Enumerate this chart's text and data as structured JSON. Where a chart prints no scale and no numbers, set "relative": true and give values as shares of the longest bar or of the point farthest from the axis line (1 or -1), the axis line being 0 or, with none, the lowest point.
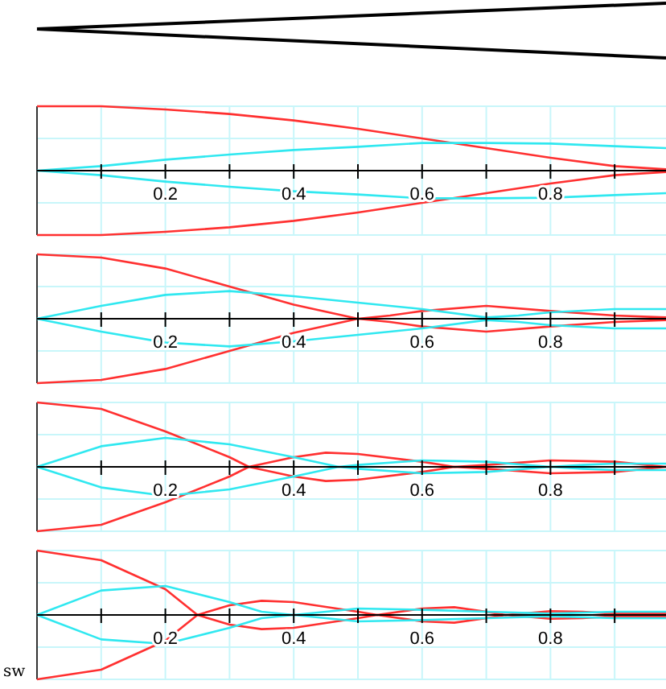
{
  "chart_data": [
    {
      "type": "line",
      "relative": true,
      "xlim": [
        0,
        0.98
      ],
      "xticks": [
        {
          "value": 0.1,
          "label": null
        },
        0.2,
        {
          "value": 0.3,
          "label": null
        },
        0.4,
        {
          "value": 0.5,
          "label": null
        },
        0.6,
        {
          "value": 0.7,
          "label": null
        },
        0.8,
        {
          "value": 0.9,
          "label": null
        }
      ],
      "grid": true,
      "series": [
        {
          "color": "#ff3030",
          "x": [
            0,
            0.1,
            0.2,
            0.3,
            0.4,
            0.5,
            0.6,
            0.7,
            0.8,
            0.9,
            0.98
          ],
          "values": [
            1,
            1,
            0.95,
            0.88,
            0.78,
            0.65,
            0.5,
            0.35,
            0.2,
            0.07,
            0.02
          ]
        },
        {
          "color": "#ff3030",
          "x": [
            0,
            0.1,
            0.2,
            0.3,
            0.4,
            0.5,
            0.6,
            0.7,
            0.8,
            0.9,
            0.98
          ],
          "values": [
            -1,
            -1,
            -0.95,
            -0.88,
            -0.78,
            -0.65,
            -0.5,
            -0.35,
            -0.2,
            -0.07,
            -0.02
          ]
        },
        {
          "color": "#30e8f0",
          "x": [
            0,
            0.1,
            0.2,
            0.3,
            0.4,
            0.5,
            0.6,
            0.7,
            0.8,
            0.9,
            0.98
          ],
          "values": [
            0,
            0.07,
            0.17,
            0.25,
            0.32,
            0.37,
            0.43,
            0.43,
            0.42,
            0.38,
            0.35
          ]
        },
        {
          "color": "#30e8f0",
          "x": [
            0,
            0.1,
            0.2,
            0.3,
            0.4,
            0.5,
            0.6,
            0.7,
            0.8,
            0.9,
            0.98
          ],
          "values": [
            0,
            -0.07,
            -0.17,
            -0.25,
            -0.32,
            -0.37,
            -0.43,
            -0.43,
            -0.42,
            -0.38,
            -0.35
          ]
        }
      ]
    },
    {
      "type": "line",
      "relative": true,
      "xlim": [
        0,
        0.98
      ],
      "xticks": [
        {
          "value": 0.1,
          "label": null
        },
        0.2,
        {
          "value": 0.3,
          "label": null
        },
        0.4,
        {
          "value": 0.5,
          "label": null
        },
        0.6,
        {
          "value": 0.7,
          "label": null
        },
        0.8,
        {
          "value": 0.9,
          "label": null
        }
      ],
      "grid": true,
      "series": [
        {
          "color": "#ff3030",
          "x": [
            0,
            0.1,
            0.2,
            0.3,
            0.4,
            0.5,
            0.55,
            0.6,
            0.7,
            0.8,
            0.9,
            0.98
          ],
          "values": [
            1,
            0.95,
            0.78,
            0.5,
            0.22,
            0,
            0.05,
            0.12,
            0.2,
            0.12,
            0.05,
            0.02
          ]
        },
        {
          "color": "#ff3030",
          "x": [
            0,
            0.1,
            0.2,
            0.3,
            0.4,
            0.5,
            0.55,
            0.6,
            0.7,
            0.8,
            0.9,
            0.98
          ],
          "values": [
            -1,
            -0.95,
            -0.78,
            -0.5,
            -0.22,
            0,
            -0.05,
            -0.12,
            -0.2,
            -0.12,
            -0.05,
            -0.02
          ]
        },
        {
          "color": "#30e8f0",
          "x": [
            0,
            0.1,
            0.2,
            0.3,
            0.4,
            0.5,
            0.6,
            0.7,
            0.75,
            0.8,
            0.9,
            0.98
          ],
          "values": [
            0,
            0.2,
            0.37,
            0.43,
            0.35,
            0.25,
            0.15,
            0.02,
            0.05,
            0.1,
            0.15,
            0.15
          ]
        },
        {
          "color": "#30e8f0",
          "x": [
            0,
            0.1,
            0.2,
            0.3,
            0.4,
            0.5,
            0.6,
            0.7,
            0.75,
            0.8,
            0.9,
            0.98
          ],
          "values": [
            0,
            -0.2,
            -0.37,
            -0.43,
            -0.35,
            -0.25,
            -0.15,
            -0.02,
            -0.05,
            -0.1,
            -0.15,
            -0.15
          ]
        }
      ]
    },
    {
      "type": "line",
      "relative": true,
      "xlim": [
        0,
        0.98
      ],
      "xticks": [
        {
          "value": 0.1,
          "label": null
        },
        0.2,
        {
          "value": 0.3,
          "label": null
        },
        0.4,
        {
          "value": 0.5,
          "label": null
        },
        0.6,
        {
          "value": 0.7,
          "label": null
        },
        0.8,
        {
          "value": 0.9,
          "label": null
        }
      ],
      "grid": true,
      "series": [
        {
          "color": "#ff3030",
          "x": [
            0,
            0.1,
            0.2,
            0.3,
            0.33,
            0.4,
            0.45,
            0.5,
            0.6,
            0.65,
            0.7,
            0.8,
            0.9,
            0.98
          ],
          "values": [
            1,
            0.9,
            0.55,
            0.15,
            0,
            0.15,
            0.22,
            0.2,
            0.08,
            0,
            0.03,
            0.1,
            0.08,
            0
          ]
        },
        {
          "color": "#ff3030",
          "x": [
            0,
            0.1,
            0.2,
            0.3,
            0.33,
            0.4,
            0.45,
            0.5,
            0.6,
            0.65,
            0.7,
            0.8,
            0.9,
            0.98
          ],
          "values": [
            -1,
            -0.9,
            -0.55,
            -0.15,
            0,
            -0.15,
            -0.22,
            -0.2,
            -0.08,
            0,
            -0.03,
            -0.1,
            -0.08,
            0
          ]
        },
        {
          "color": "#30e8f0",
          "x": [
            0,
            0.1,
            0.2,
            0.3,
            0.4,
            0.47,
            0.5,
            0.6,
            0.7,
            0.8,
            0.85,
            0.9,
            0.98
          ],
          "values": [
            0,
            0.32,
            0.45,
            0.35,
            0.15,
            0,
            0.03,
            0.1,
            0.08,
            0,
            0.03,
            0.05,
            0.05
          ]
        },
        {
          "color": "#30e8f0",
          "x": [
            0,
            0.1,
            0.2,
            0.3,
            0.4,
            0.47,
            0.5,
            0.6,
            0.7,
            0.8,
            0.85,
            0.9,
            0.98
          ],
          "values": [
            0,
            -0.32,
            -0.45,
            -0.35,
            -0.15,
            0,
            -0.03,
            -0.1,
            -0.08,
            0,
            -0.03,
            -0.05,
            -0.05
          ]
        }
      ]
    },
    {
      "type": "line",
      "relative": true,
      "xlim": [
        0,
        0.98
      ],
      "xticks": [
        {
          "value": 0.1,
          "label": null
        },
        0.2,
        {
          "value": 0.3,
          "label": null
        },
        0.4,
        {
          "value": 0.5,
          "label": null
        },
        0.6,
        {
          "value": 0.7,
          "label": null
        },
        0.8,
        {
          "value": 0.9,
          "label": null
        }
      ],
      "grid": true,
      "annotations": [
        "sw"
      ],
      "series": [
        {
          "color": "#ff3030",
          "x": [
            0,
            0.1,
            0.2,
            0.25,
            0.3,
            0.35,
            0.4,
            0.5,
            0.53,
            0.6,
            0.65,
            0.7,
            0.73,
            0.8,
            0.85,
            0.9,
            0.98
          ],
          "values": [
            1,
            0.85,
            0.4,
            0,
            0.15,
            0.22,
            0.2,
            0.05,
            0,
            0.1,
            0.12,
            0.05,
            0,
            0.06,
            0.05,
            0.02,
            0.02
          ]
        },
        {
          "color": "#ff3030",
          "x": [
            0,
            0.1,
            0.2,
            0.25,
            0.3,
            0.35,
            0.4,
            0.5,
            0.53,
            0.6,
            0.65,
            0.7,
            0.73,
            0.8,
            0.85,
            0.9,
            0.98
          ],
          "values": [
            -1,
            -0.85,
            -0.4,
            0,
            -0.15,
            -0.22,
            -0.2,
            -0.05,
            0,
            -0.1,
            -0.12,
            -0.05,
            0,
            -0.06,
            -0.05,
            -0.02,
            -0.02
          ]
        },
        {
          "color": "#30e8f0",
          "x": [
            0,
            0.1,
            0.2,
            0.3,
            0.35,
            0.4,
            0.5,
            0.6,
            0.7,
            0.8,
            0.9,
            0.98
          ],
          "values": [
            0,
            0.38,
            0.45,
            0.2,
            0.05,
            0,
            0.1,
            0.08,
            0.05,
            0.02,
            0.05,
            0.05
          ]
        },
        {
          "color": "#30e8f0",
          "x": [
            0,
            0.1,
            0.2,
            0.3,
            0.35,
            0.4,
            0.5,
            0.6,
            0.7,
            0.8,
            0.9,
            0.98
          ],
          "values": [
            0,
            -0.38,
            -0.45,
            -0.2,
            -0.05,
            0,
            -0.1,
            -0.08,
            -0.05,
            -0.02,
            -0.05,
            -0.05
          ]
        }
      ]
    }
  ]
}
